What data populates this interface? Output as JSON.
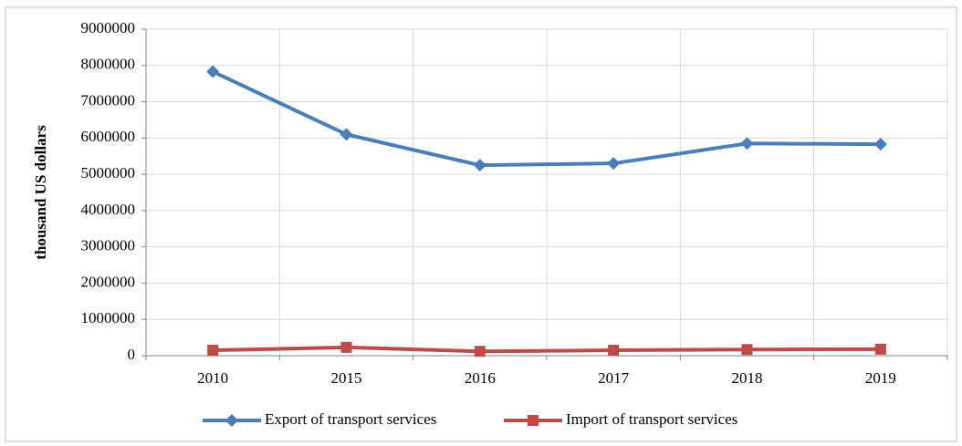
{
  "chart_data": {
    "type": "line",
    "y_label": "thousand US dollars",
    "categories": [
      "2010",
      "2015",
      "2016",
      "2017",
      "2018",
      "2019"
    ],
    "series": [
      {
        "name": "Export of transport services",
        "color": "#4a7ebb",
        "marker": "diamond",
        "values": [
          7830000,
          6100000,
          5250000,
          5300000,
          5850000,
          5830000
        ]
      },
      {
        "name": "Import of transport services",
        "color": "#be4b48",
        "marker": "square",
        "values": [
          150000,
          230000,
          120000,
          150000,
          170000,
          180000
        ]
      }
    ],
    "ylim": [
      0,
      9000000
    ],
    "yticks": [
      0,
      1000000,
      2000000,
      3000000,
      4000000,
      5000000,
      6000000,
      7000000,
      8000000,
      9000000
    ],
    "grid": true,
    "legend": "bottom"
  }
}
